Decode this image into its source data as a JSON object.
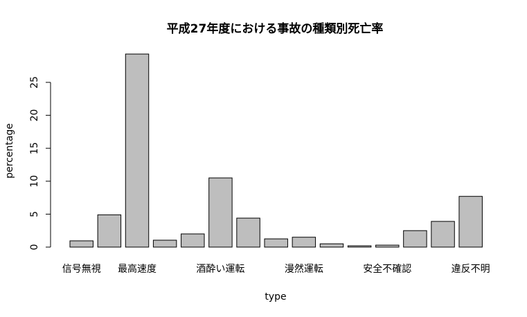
{
  "chart_data": {
    "type": "bar",
    "title": "平成27年度における事故の種類別死亡率",
    "xlabel": "type",
    "ylabel": "percentage",
    "categories": [
      "信号無視",
      null,
      "最高速度",
      null,
      null,
      "酒酔い運転",
      null,
      null,
      "漫然運転",
      null,
      null,
      "安全不確認",
      null,
      null,
      "違反不明"
    ],
    "values": [
      0.95,
      4.9,
      29.3,
      1.05,
      2.0,
      10.5,
      4.4,
      1.25,
      1.5,
      0.5,
      0.2,
      0.3,
      2.5,
      3.9,
      7.7
    ],
    "color": "#bebebe",
    "ylim": [
      0,
      30
    ],
    "yticks": [
      0,
      5,
      10,
      15,
      20,
      25
    ]
  }
}
